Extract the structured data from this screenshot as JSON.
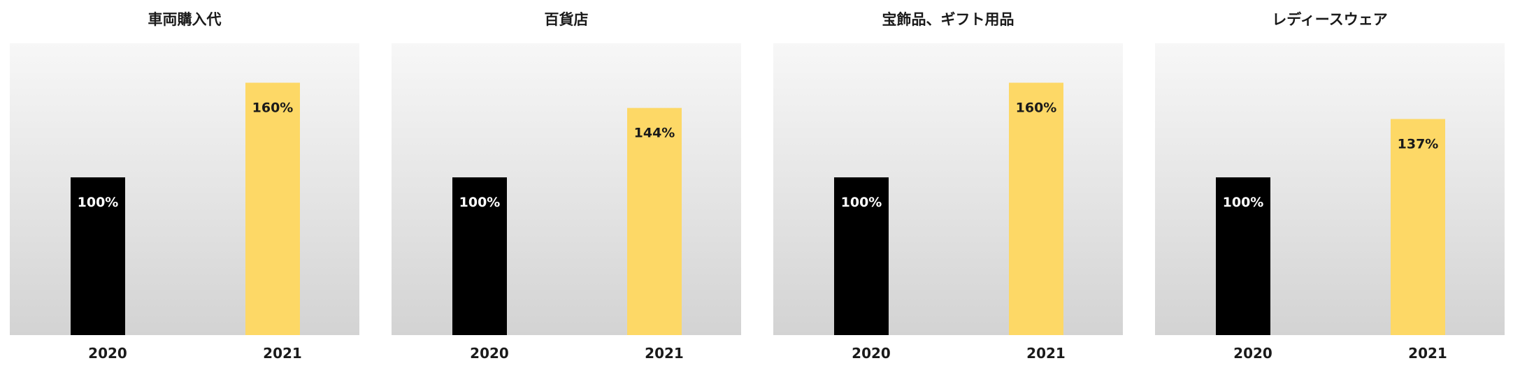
{
  "chart_data": [
    {
      "type": "bar",
      "title": "車両購入代",
      "categories": [
        "2020",
        "2021"
      ],
      "values": [
        100,
        160
      ],
      "data_labels": [
        "100%",
        "160%"
      ],
      "colors": [
        "#000000",
        "#FDD866"
      ]
    },
    {
      "type": "bar",
      "title": "百貨店",
      "categories": [
        "2020",
        "2021"
      ],
      "values": [
        100,
        144
      ],
      "data_labels": [
        "100%",
        "144%"
      ],
      "colors": [
        "#000000",
        "#FDD866"
      ]
    },
    {
      "type": "bar",
      "title": "宝飾品、ギフト用品",
      "categories": [
        "2020",
        "2021"
      ],
      "values": [
        100,
        160
      ],
      "data_labels": [
        "100%",
        "160%"
      ],
      "colors": [
        "#000000",
        "#FDD866"
      ]
    },
    {
      "type": "bar",
      "title": "レディースウェア",
      "categories": [
        "2020",
        "2021"
      ],
      "values": [
        100,
        137
      ],
      "data_labels": [
        "100%",
        "137%"
      ],
      "colors": [
        "#000000",
        "#FDD866"
      ]
    }
  ]
}
